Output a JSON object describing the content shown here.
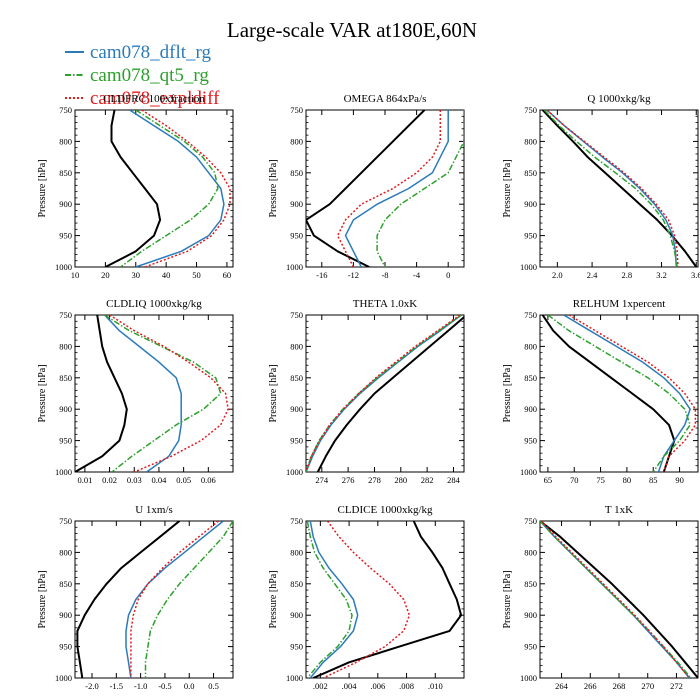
{
  "figure": {
    "title": "Large-scale VAR at180E,60N",
    "legend": [
      {
        "name": "cam078_dflt_rg",
        "color": "#2b7bba",
        "dash": "solid"
      },
      {
        "name": "cam078_qt5_rg",
        "color": "#2ca02c",
        "dash": "dashdot"
      },
      {
        "name": "cam078_expldiff",
        "color": "#e41a1c",
        "dash": "dotted"
      }
    ],
    "reference_color": "#000000"
  },
  "chart_data": [
    {
      "type": "line",
      "title": "CLDFRC 100xfraction",
      "ylabel": "Pressure [hPa]",
      "ylim": [
        1000,
        750
      ],
      "yticks": [
        750,
        800,
        850,
        900,
        950,
        1000
      ],
      "xlim": [
        10,
        62
      ],
      "xticks": [
        10,
        20,
        30,
        40,
        50,
        60
      ],
      "y": [
        750,
        775,
        800,
        825,
        850,
        875,
        900,
        925,
        950,
        975,
        1000
      ],
      "series": [
        {
          "values": [
            23,
            22,
            22,
            25,
            29,
            33,
            37,
            38,
            36,
            30,
            20
          ]
        },
        {
          "values": [
            28,
            36,
            44,
            50,
            54,
            58,
            59,
            58,
            54,
            45,
            30
          ]
        },
        {
          "values": [
            30,
            38,
            46,
            52,
            56,
            57,
            54,
            48,
            40,
            32,
            25
          ]
        },
        {
          "values": [
            32,
            40,
            47,
            53,
            58,
            61,
            61,
            59,
            55,
            47,
            33
          ]
        }
      ]
    },
    {
      "type": "line",
      "title": "OMEGA 864xPa/s",
      "ylabel": "Pressure [hPa]",
      "ylim": [
        1000,
        750
      ],
      "yticks": [
        750,
        800,
        850,
        900,
        950,
        1000
      ],
      "xlim": [
        -18,
        2
      ],
      "xticks": [
        -16,
        -12,
        -8,
        -4,
        0
      ],
      "y": [
        750,
        775,
        800,
        825,
        850,
        875,
        900,
        925,
        950,
        975,
        1000
      ],
      "series": [
        {
          "values": [
            -3,
            -5,
            -7,
            -9,
            -11,
            -13,
            -15,
            -18,
            -17,
            -14,
            -10
          ]
        },
        {
          "values": [
            0,
            0,
            0,
            -1,
            -2,
            -5,
            -9,
            -12,
            -13,
            -12,
            -11
          ]
        },
        {
          "values": [
            2,
            2,
            2,
            1,
            0,
            -3,
            -6,
            -8,
            -9,
            -9,
            -8
          ]
        },
        {
          "values": [
            -1,
            -1,
            -1,
            -2,
            -4,
            -7,
            -11,
            -13,
            -14,
            -13,
            -12
          ]
        }
      ]
    },
    {
      "type": "line",
      "title": "Q 1000xkg/kg",
      "ylabel": "Pressure [hPa]",
      "ylim": [
        1000,
        750
      ],
      "yticks": [
        750,
        800,
        850,
        900,
        950,
        1000
      ],
      "xlim": [
        1.8,
        3.62
      ],
      "xticks": [
        2.0,
        2.4,
        2.8,
        3.2,
        3.6
      ],
      "y": [
        750,
        775,
        800,
        825,
        850,
        875,
        900,
        925,
        950,
        975,
        1000
      ],
      "series": [
        {
          "values": [
            1.83,
            2.0,
            2.18,
            2.35,
            2.55,
            2.75,
            2.95,
            3.15,
            3.32,
            3.47,
            3.6
          ]
        },
        {
          "values": [
            1.88,
            2.08,
            2.3,
            2.52,
            2.75,
            2.95,
            3.12,
            3.25,
            3.33,
            3.36,
            3.37
          ]
        },
        {
          "values": [
            1.85,
            2.02,
            2.22,
            2.43,
            2.67,
            2.9,
            3.08,
            3.22,
            3.3,
            3.35,
            3.38
          ]
        },
        {
          "values": [
            1.88,
            2.08,
            2.31,
            2.54,
            2.77,
            2.97,
            3.14,
            3.28,
            3.35,
            3.38,
            3.39
          ]
        }
      ]
    },
    {
      "type": "line",
      "title": "CLDLIQ 1000xkg/kg",
      "ylabel": "Pressure [hPa]",
      "ylim": [
        1000,
        750
      ],
      "yticks": [
        750,
        800,
        850,
        900,
        950,
        1000
      ],
      "xlim": [
        0.006,
        0.07
      ],
      "xticks": [
        0.01,
        0.02,
        0.03,
        0.04,
        0.05,
        0.06
      ],
      "y": [
        750,
        775,
        800,
        825,
        850,
        875,
        900,
        925,
        950,
        975,
        1000
      ],
      "series": [
        {
          "values": [
            0.015,
            0.016,
            0.017,
            0.019,
            0.022,
            0.025,
            0.027,
            0.026,
            0.024,
            0.017,
            0.006
          ]
        },
        {
          "values": [
            0.018,
            0.024,
            0.032,
            0.04,
            0.047,
            0.049,
            0.049,
            0.049,
            0.048,
            0.044,
            0.035
          ]
        },
        {
          "values": [
            0.018,
            0.028,
            0.041,
            0.054,
            0.063,
            0.065,
            0.058,
            0.047,
            0.038,
            0.029,
            0.021
          ]
        },
        {
          "values": [
            0.02,
            0.03,
            0.042,
            0.052,
            0.061,
            0.067,
            0.068,
            0.065,
            0.057,
            0.045,
            0.03
          ]
        }
      ]
    },
    {
      "type": "line",
      "title": "THETA 1.0xK",
      "ylabel": "",
      "ylim": [
        1000,
        750
      ],
      "yticks": [
        750,
        800,
        850,
        900,
        950,
        1000
      ],
      "xlim": [
        272.8,
        284.8
      ],
      "xticks": [
        274.0,
        276.0,
        278.0,
        280.0,
        282.0,
        284.0
      ],
      "y": [
        750,
        775,
        800,
        825,
        850,
        875,
        900,
        925,
        950,
        975,
        1000
      ],
      "series": [
        {
          "values": [
            285.0,
            283.6,
            282.2,
            280.8,
            279.4,
            278.0,
            276.9,
            275.9,
            275.0,
            274.3,
            273.7
          ]
        },
        {
          "values": [
            284.6,
            283.0,
            281.3,
            279.8,
            278.3,
            276.9,
            275.7,
            274.7,
            273.9,
            273.3,
            272.8
          ]
        },
        {
          "values": [
            284.6,
            282.9,
            281.2,
            279.7,
            278.2,
            276.8,
            275.6,
            274.6,
            273.8,
            273.2,
            272.8
          ]
        },
        {
          "values": [
            284.5,
            282.8,
            281.1,
            279.6,
            278.1,
            276.8,
            275.6,
            274.6,
            273.8,
            273.2,
            272.8
          ]
        }
      ]
    },
    {
      "type": "line",
      "title": "RELHUM 1xpercent",
      "ylabel": "",
      "ylim": [
        1000,
        750
      ],
      "yticks": [
        750,
        800,
        850,
        900,
        950,
        1000
      ],
      "xlim": [
        63.5,
        93.5
      ],
      "xticks": [
        65.0,
        70.0,
        75.0,
        80.0,
        85.0,
        90.0
      ],
      "y": [
        750,
        775,
        800,
        825,
        850,
        875,
        900,
        925,
        950,
        975,
        1000
      ],
      "series": [
        {
          "values": [
            64,
            66,
            69,
            73,
            77,
            81,
            85,
            88,
            89,
            88,
            87
          ]
        },
        {
          "values": [
            68,
            73,
            78,
            83,
            87,
            90,
            92,
            91,
            89,
            87,
            86
          ]
        },
        {
          "values": [
            65,
            69,
            74,
            79,
            84,
            88,
            91,
            92,
            90,
            87,
            85
          ]
        },
        {
          "values": [
            69,
            74,
            79,
            84,
            88,
            91,
            93,
            93,
            91,
            88,
            87
          ]
        }
      ]
    },
    {
      "type": "line",
      "title": "U 1xm/s",
      "ylabel": "Pressure [hPa]",
      "ylim": [
        1000,
        750
      ],
      "yticks": [
        750,
        800,
        850,
        900,
        950,
        1000
      ],
      "xlim": [
        -2.35,
        0.9
      ],
      "xticks": [
        -2.0,
        -1.5,
        -1.0,
        -0.5,
        0.0,
        0.5
      ],
      "y": [
        750,
        775,
        800,
        825,
        850,
        875,
        900,
        925,
        950,
        975,
        1000
      ],
      "series": [
        {
          "values": [
            -0.2,
            -0.6,
            -1.0,
            -1.4,
            -1.7,
            -1.95,
            -2.15,
            -2.3,
            -2.3,
            -2.25,
            -2.2
          ]
        },
        {
          "values": [
            0.7,
            0.3,
            -0.1,
            -0.5,
            -0.85,
            -1.1,
            -1.25,
            -1.3,
            -1.3,
            -1.25,
            -1.2
          ]
        },
        {
          "values": [
            0.9,
            0.7,
            0.4,
            0.1,
            -0.2,
            -0.45,
            -0.65,
            -0.8,
            -0.85,
            -0.9,
            -0.9
          ]
        },
        {
          "values": [
            0.6,
            0.2,
            -0.2,
            -0.55,
            -0.85,
            -1.05,
            -1.15,
            -1.2,
            -1.2,
            -1.2,
            -1.2
          ]
        }
      ]
    },
    {
      "type": "line",
      "title": "CLDICE 1000xkg/kg",
      "ylabel": "",
      "ylim": [
        1000,
        750
      ],
      "yticks": [
        750,
        800,
        850,
        900,
        950,
        1000
      ],
      "xlim": [
        0.001,
        0.012
      ],
      "xticks": [
        0.002,
        0.004,
        0.006,
        0.008,
        0.01
      ],
      "y": [
        750,
        775,
        800,
        825,
        850,
        875,
        900,
        925,
        950,
        975,
        1000
      ],
      "series": [
        {
          "values": [
            0.0085,
            0.009,
            0.0098,
            0.0105,
            0.011,
            0.0115,
            0.0118,
            0.011,
            0.0075,
            0.004,
            0.0015
          ]
        },
        {
          "values": [
            0.0013,
            0.0015,
            0.0019,
            0.0026,
            0.0035,
            0.0043,
            0.0046,
            0.0043,
            0.0034,
            0.0022,
            0.0013
          ]
        },
        {
          "values": [
            0.0011,
            0.0013,
            0.0016,
            0.0022,
            0.003,
            0.0038,
            0.0042,
            0.004,
            0.0032,
            0.002,
            0.0011
          ]
        },
        {
          "values": [
            0.0025,
            0.0033,
            0.0043,
            0.0055,
            0.0068,
            0.0078,
            0.0082,
            0.0078,
            0.0065,
            0.0045,
            0.0022
          ]
        }
      ]
    },
    {
      "type": "line",
      "title": "T 1xK",
      "ylabel": "",
      "ylim": [
        1000,
        750
      ],
      "yticks": [
        750,
        800,
        850,
        900,
        950,
        1000
      ],
      "xlim": [
        262.5,
        273.5
      ],
      "xticks": [
        264.0,
        266.0,
        268.0,
        270.0,
        272.0
      ],
      "y": [
        750,
        775,
        800,
        825,
        850,
        875,
        900,
        925,
        950,
        975,
        1000
      ],
      "series": [
        {
          "values": [
            262.5,
            263.9,
            265.1,
            266.3,
            267.5,
            268.6,
            269.7,
            270.7,
            271.7,
            272.6,
            273.5
          ]
        },
        {
          "values": [
            262.5,
            263.5,
            264.6,
            265.7,
            266.8,
            267.9,
            269.0,
            270.0,
            271.0,
            272.0,
            272.9
          ]
        },
        {
          "values": [
            262.5,
            263.5,
            264.6,
            265.7,
            266.8,
            267.9,
            269.0,
            270.1,
            271.1,
            272.1,
            273.0
          ]
        },
        {
          "values": [
            262.6,
            263.6,
            264.7,
            265.8,
            266.9,
            268.0,
            269.1,
            270.1,
            271.1,
            272.0,
            272.9
          ]
        }
      ]
    }
  ]
}
